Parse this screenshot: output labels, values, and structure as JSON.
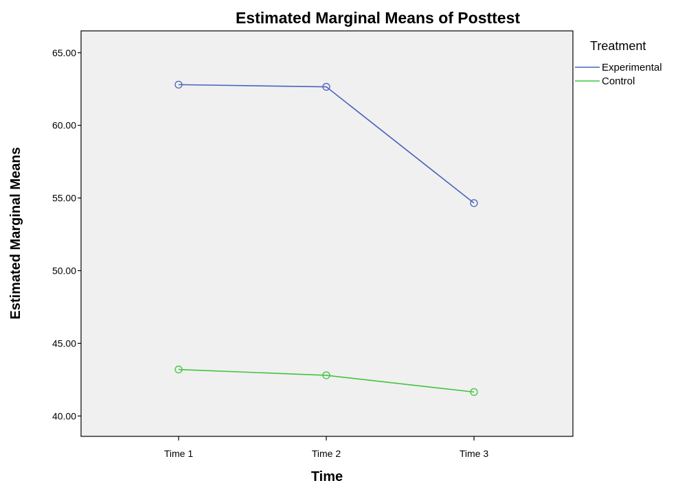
{
  "chart_data": {
    "type": "line",
    "title": "Estimated Marginal Means of Posttest",
    "xlabel": "Time",
    "ylabel": "Estimated Marginal Means",
    "categories": [
      "Time 1",
      "Time 2",
      "Time 3"
    ],
    "ylim": [
      38.6,
      66.5
    ],
    "yticks": [
      40,
      45,
      50,
      55,
      60,
      65
    ],
    "ytick_labels": [
      "40.00",
      "45.00",
      "50.00",
      "55.00",
      "60.00",
      "65.00"
    ],
    "grid": false,
    "legend": {
      "title": "Treatment",
      "placement": "right"
    },
    "series": [
      {
        "name": "Experimental",
        "color": "#4a62be",
        "values": [
          62.8,
          62.65,
          54.65
        ]
      },
      {
        "name": "Control",
        "color": "#3ec43e",
        "values": [
          43.2,
          42.8,
          41.65
        ]
      }
    ],
    "plot_background": "#f0f0f0"
  }
}
